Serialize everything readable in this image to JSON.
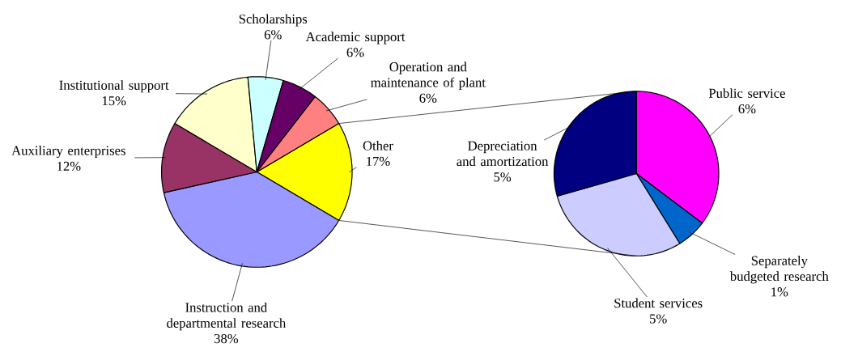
{
  "chart_data": [
    {
      "type": "pie",
      "categories": [
        "Other",
        "Instruction and departmental research",
        "Auxiliary enterprises",
        "Institutional support",
        "Scholarships",
        "Academic support",
        "Operation and maintenance of plant"
      ],
      "values": [
        17,
        38,
        12,
        15,
        6,
        6,
        6
      ],
      "value_labels": [
        "17%",
        "38%",
        "12%",
        "15%",
        "6%",
        "6%",
        "6%"
      ],
      "colors": [
        "#ffff00",
        "#9999ff",
        "#993366",
        "#ffffcc",
        "#ccffff",
        "#660066",
        "#ff8080"
      ]
    },
    {
      "type": "pie",
      "categories": [
        "Public service",
        "Separately budgeted research",
        "Student services",
        "Depreciation and amortization"
      ],
      "values": [
        6,
        1,
        5,
        5
      ],
      "value_labels": [
        "6%",
        "1%",
        "5%",
        "5%"
      ],
      "colors": [
        "#ff00ff",
        "#0066cc",
        "#ccccff",
        "#000080"
      ]
    }
  ]
}
